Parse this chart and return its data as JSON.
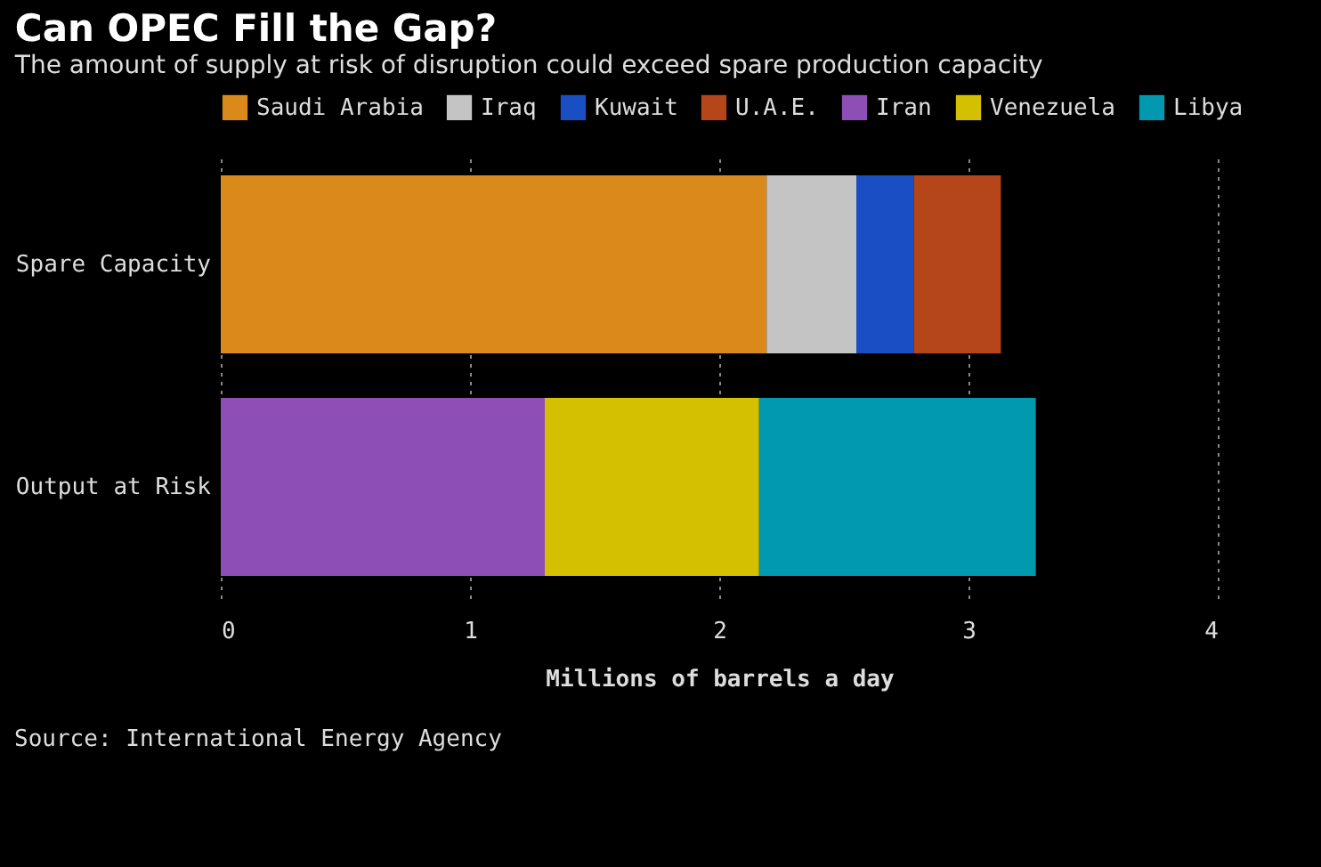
{
  "chart_data": {
    "type": "bar",
    "orientation": "horizontal",
    "stacked": true,
    "title": "Can OPEC Fill the Gap?",
    "subtitle": "The amount of supply at risk of disruption could exceed spare production capacity",
    "xlabel": "Millions of barrels a day",
    "annotations": [
      "Source: International Energy Agency"
    ],
    "categories": [
      "Spare Capacity",
      "Output at Risk"
    ],
    "series": [
      {
        "name": "Saudi Arabia",
        "color": "#d98a1a",
        "values": [
          2.19,
          null
        ]
      },
      {
        "name": "Iraq",
        "color": "#c4c4c4",
        "values": [
          0.36,
          null
        ]
      },
      {
        "name": "Kuwait",
        "color": "#1a4fc4",
        "values": [
          0.23,
          null
        ]
      },
      {
        "name": "U.A.E.",
        "color": "#b5461a",
        "values": [
          0.35,
          null
        ]
      },
      {
        "name": "Iran",
        "color": "#8e4fb5",
        "values": [
          null,
          1.3
        ]
      },
      {
        "name": "Venezuela",
        "color": "#d4bf00",
        "values": [
          null,
          0.86
        ]
      },
      {
        "name": "Libya",
        "color": "#0099b0",
        "values": [
          null,
          1.11
        ]
      }
    ],
    "xlim": [
      0,
      4
    ],
    "xticks": [
      0,
      1,
      2,
      3,
      4
    ],
    "grid": "x",
    "legend": "top"
  }
}
